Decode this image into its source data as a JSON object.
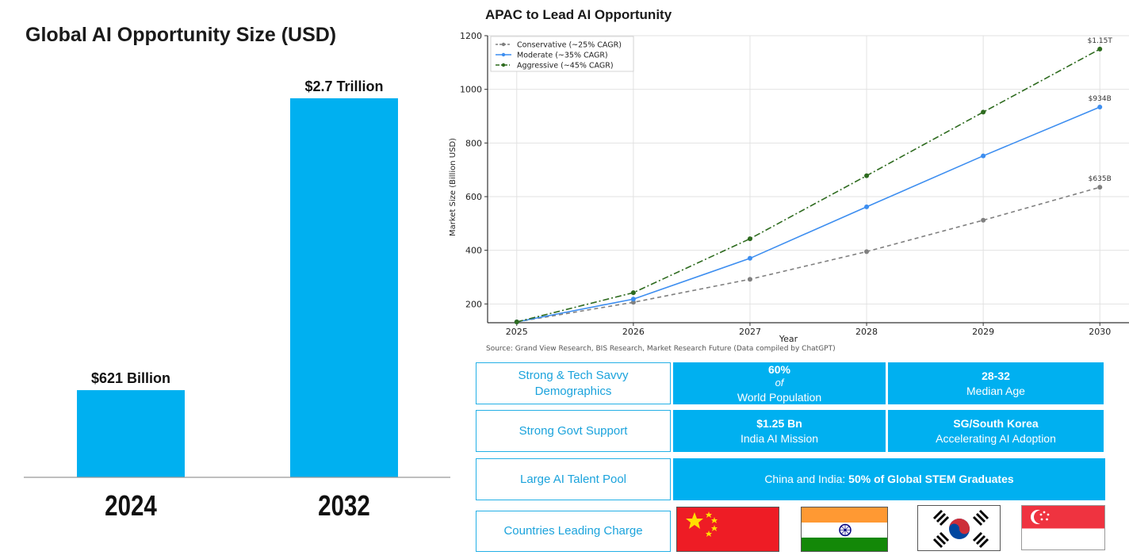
{
  "left_chart": {
    "title": "Global AI Opportunity Size (USD)",
    "accent_color": "#00b0f0"
  },
  "chart_data": [
    {
      "type": "bar",
      "title": "Global AI Opportunity Size (USD)",
      "categories": [
        "2024",
        "2032"
      ],
      "values": [
        621,
        2700
      ],
      "unit": "Billion USD",
      "data_labels": [
        "$621 Billion",
        "$2.7 Trillion"
      ],
      "ylim": [
        0,
        3400
      ],
      "color": "#00b0f0"
    },
    {
      "type": "line",
      "title": "APAC to Lead AI Opportunity",
      "xlabel": "Year",
      "ylabel": "Market Size (Billion USD)",
      "x": [
        2025,
        2026,
        2027,
        2028,
        2029,
        2030
      ],
      "xlim": [
        2024.75,
        2030.25
      ],
      "ylim": [
        130,
        1200
      ],
      "yticks": [
        200,
        400,
        600,
        800,
        1000,
        1200
      ],
      "grid": true,
      "legend_position": "top-left",
      "series": [
        {
          "name": "Conservative (~25% CAGR)",
          "values": [
            133,
            206,
            292,
            395,
            512,
            635
          ],
          "color": "#808080",
          "style": "dashed",
          "end_label": "$635B"
        },
        {
          "name": "Moderate (~35% CAGR)",
          "values": [
            133,
            218,
            370,
            562,
            752,
            934
          ],
          "color": "#3d8ef0",
          "style": "solid",
          "end_label": "$934B"
        },
        {
          "name": "Aggressive (~45% CAGR)",
          "values": [
            133,
            242,
            443,
            678,
            915,
            1150
          ],
          "color": "#2e6b1f",
          "style": "dashdot",
          "end_label": "$1.15T"
        }
      ]
    }
  ],
  "right_panel": {
    "title": "APAC to Lead AI Opportunity",
    "source": "Source: Grand View Research, BIS Research, Market Research Future (Data compiled by ChatGPT)"
  },
  "table": {
    "demographics": {
      "label": "Strong & Tech Savvy Demographics",
      "pop_value": "60%",
      "pop_of": "of",
      "pop_text": "World Population",
      "age_value": "28-32",
      "age_text": "Median Age"
    },
    "govt": {
      "label": "Strong Govt Support",
      "india_value": "$1.25 Bn",
      "india_text": "India AI Mission",
      "sg_value": "SG/South Korea",
      "sg_text": "Accelerating AI Adoption"
    },
    "talent": {
      "label": "Large AI Talent Pool",
      "text_prefix": "China and India: ",
      "text_bold": "50% of Global STEM Graduates"
    },
    "countries": {
      "label": "Countries Leading Charge"
    }
  }
}
